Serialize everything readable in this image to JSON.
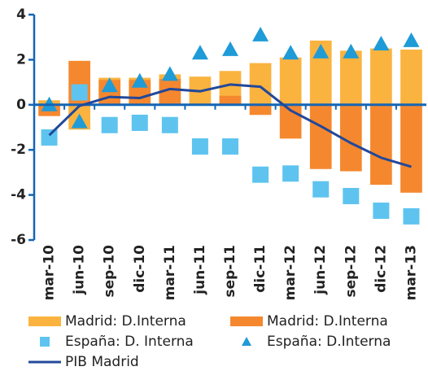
{
  "chart_data": {
    "type": "bar",
    "categories": [
      "mar-10",
      "jun-10",
      "sep-10",
      "dic-10",
      "mar-11",
      "jun-11",
      "sep-11",
      "dic-11",
      "mar-12",
      "jun-12",
      "sep-12",
      "dic-12",
      "mar-13"
    ],
    "series": [
      {
        "name": "Madrid: D.Interna",
        "mark": "bar",
        "color": "#fbb33f",
        "values": [
          0.2,
          -1.1,
          1.2,
          1.2,
          1.35,
          1.25,
          1.5,
          1.85,
          2.1,
          2.85,
          2.4,
          2.5,
          2.45
        ]
      },
      {
        "name": "Madrid: D.Interna",
        "mark": "bar",
        "color": "#f5882e",
        "values": [
          -0.5,
          1.95,
          1.1,
          1.1,
          1.15,
          0.05,
          0.4,
          -0.45,
          -1.5,
          -2.85,
          -2.95,
          -3.55,
          -3.9
        ]
      },
      {
        "name": "España: D. Interna",
        "mark": "square",
        "color": "#5ec4ef",
        "values": [
          -1.45,
          0.55,
          -0.9,
          -0.8,
          -0.9,
          -1.85,
          -1.85,
          -3.1,
          -3.05,
          -3.75,
          -4.05,
          -4.7,
          -4.95
        ]
      },
      {
        "name": "España: D.Interna",
        "mark": "triangle",
        "color": "#1f9bd7",
        "values": [
          0.0,
          -0.75,
          0.85,
          1.05,
          1.35,
          2.3,
          2.45,
          3.1,
          2.3,
          2.35,
          2.35,
          2.7,
          2.85
        ]
      },
      {
        "name": "PIB Madrid",
        "mark": "line",
        "color": "#22489a",
        "values": [
          -1.35,
          -0.05,
          0.35,
          0.3,
          0.7,
          0.6,
          0.9,
          0.8,
          -0.25,
          -0.95,
          -1.7,
          -2.35,
          -2.75
        ]
      }
    ],
    "ylim": [
      -6,
      4
    ],
    "yticks": [
      -6,
      -4,
      -2,
      0,
      2,
      4
    ],
    "axis_color": "#1565b4"
  }
}
